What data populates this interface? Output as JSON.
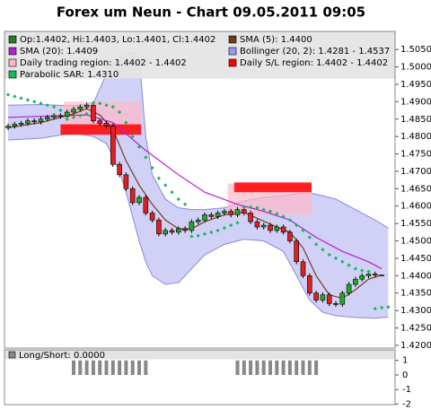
{
  "chart_data": {
    "type": "candlestick",
    "title": "Forex um Neun - Chart 09.05.2011 09:05",
    "ylim": [
      1.4192,
      1.5102
    ],
    "yticks": [
      {
        "value": 1.42,
        "label": "1.4200"
      },
      {
        "value": 1.425,
        "label": "1.4250"
      },
      {
        "value": 1.43,
        "label": "1.4300"
      },
      {
        "value": 1.435,
        "label": "1.4350"
      },
      {
        "value": 1.44,
        "label": "1.4400"
      },
      {
        "value": 1.445,
        "label": "1.4450"
      },
      {
        "value": 1.45,
        "label": "1.4500"
      },
      {
        "value": 1.455,
        "label": "1.4550"
      },
      {
        "value": 1.46,
        "label": "1.4600"
      },
      {
        "value": 1.465,
        "label": "1.4650"
      },
      {
        "value": 1.47,
        "label": "1.4700"
      },
      {
        "value": 1.475,
        "label": "1.4750"
      },
      {
        "value": 1.48,
        "label": "1.4800"
      },
      {
        "value": 1.485,
        "label": "1.4850"
      },
      {
        "value": 1.49,
        "label": "1.4900"
      },
      {
        "value": 1.495,
        "label": "1.4950"
      },
      {
        "value": 1.5,
        "label": "1.5000"
      },
      {
        "value": 1.505,
        "label": "1.5050"
      }
    ],
    "candles": {
      "name": "Op:1.4402, Hi:1.4403, Lo:1.4401, Cl:1.4402",
      "color": "#2a7a2a",
      "up_color": "#22aa22",
      "down_color": "#dd2020",
      "open": [
        1.4825,
        1.483,
        1.4835,
        1.4838,
        1.4845,
        1.4842,
        1.485,
        1.4855,
        1.486,
        1.4858,
        1.487,
        1.4878,
        1.4885,
        1.489,
        1.4845,
        1.4838,
        1.483,
        1.472,
        1.469,
        1.465,
        1.461,
        1.4625,
        1.458,
        1.456,
        1.452,
        1.453,
        1.4525,
        1.4535,
        1.453,
        1.4555,
        1.456,
        1.4575,
        1.457,
        1.458,
        1.4585,
        1.4575,
        1.459,
        1.458,
        1.4555,
        1.454,
        1.4545,
        1.453,
        1.454,
        1.4525,
        1.45,
        1.444,
        1.44,
        1.435,
        1.433,
        1.4345,
        1.432,
        1.4318,
        1.435,
        1.4375,
        1.439,
        1.44,
        1.4405,
        1.4402
      ],
      "high": [
        1.4837,
        1.4842,
        1.4845,
        1.4852,
        1.4852,
        1.4857,
        1.4862,
        1.4867,
        1.4867,
        1.4877,
        1.4885,
        1.4892,
        1.4897,
        1.4897,
        1.4852,
        1.4845,
        1.4837,
        1.4727,
        1.4697,
        1.4657,
        1.4632,
        1.4632,
        1.4587,
        1.4567,
        1.4537,
        1.4537,
        1.4542,
        1.4542,
        1.4562,
        1.4567,
        1.4582,
        1.4582,
        1.4587,
        1.4592,
        1.4592,
        1.4597,
        1.4597,
        1.4587,
        1.4562,
        1.4552,
        1.4552,
        1.4547,
        1.4547,
        1.4532,
        1.4507,
        1.4447,
        1.4407,
        1.4357,
        1.4352,
        1.4352,
        1.4327,
        1.4357,
        1.4382,
        1.4397,
        1.4407,
        1.4412,
        1.4412,
        1.4403
      ],
      "low": [
        1.4818,
        1.4823,
        1.4828,
        1.4831,
        1.4835,
        1.4835,
        1.4843,
        1.4848,
        1.4851,
        1.4851,
        1.4863,
        1.4871,
        1.4878,
        1.4838,
        1.4831,
        1.4823,
        1.4713,
        1.4683,
        1.4643,
        1.4603,
        1.4603,
        1.4573,
        1.4553,
        1.4513,
        1.4513,
        1.4518,
        1.4518,
        1.4523,
        1.4523,
        1.4548,
        1.4553,
        1.4563,
        1.4563,
        1.4573,
        1.4568,
        1.4568,
        1.4573,
        1.4548,
        1.4533,
        1.4533,
        1.4523,
        1.4523,
        1.4518,
        1.4493,
        1.4433,
        1.4393,
        1.4343,
        1.4323,
        1.4323,
        1.4313,
        1.4311,
        1.4311,
        1.4343,
        1.4368,
        1.4383,
        1.4393,
        1.4395,
        1.4401
      ],
      "close": [
        1.483,
        1.4835,
        1.4838,
        1.4845,
        1.4842,
        1.485,
        1.4855,
        1.486,
        1.4858,
        1.487,
        1.4878,
        1.4885,
        1.489,
        1.4845,
        1.4838,
        1.483,
        1.472,
        1.469,
        1.465,
        1.461,
        1.4625,
        1.458,
        1.456,
        1.452,
        1.453,
        1.4525,
        1.4535,
        1.453,
        1.4555,
        1.456,
        1.4575,
        1.457,
        1.458,
        1.4585,
        1.4575,
        1.459,
        1.458,
        1.4555,
        1.454,
        1.4545,
        1.453,
        1.454,
        1.4525,
        1.45,
        1.444,
        1.44,
        1.435,
        1.433,
        1.4345,
        1.432,
        1.4318,
        1.435,
        1.4375,
        1.439,
        1.44,
        1.4405,
        1.4402,
        1.4402
      ]
    },
    "band": {
      "name": "Bollinger (20, 2): 1.4281 - 1.4537",
      "color": "#9999ee",
      "x": [
        0,
        5,
        10,
        13,
        15,
        17,
        18,
        19,
        20,
        21,
        22,
        24,
        26,
        28,
        30,
        33,
        36,
        39,
        42,
        44,
        46,
        48,
        50,
        53,
        56,
        58
      ],
      "upper": [
        1.489,
        1.4892,
        1.4888,
        1.4895,
        1.498,
        1.503,
        1.504,
        1.504,
        1.503,
        1.48,
        1.469,
        1.462,
        1.4595,
        1.459,
        1.459,
        1.4595,
        1.4615,
        1.4625,
        1.463,
        1.4635,
        1.4638,
        1.463,
        1.462,
        1.459,
        1.456,
        1.4537
      ],
      "lower": [
        1.479,
        1.4795,
        1.481,
        1.48,
        1.478,
        1.47,
        1.464,
        1.457,
        1.45,
        1.444,
        1.44,
        1.4375,
        1.438,
        1.442,
        1.446,
        1.449,
        1.4505,
        1.45,
        1.447,
        1.44,
        1.433,
        1.4295,
        1.4285,
        1.428,
        1.4278,
        1.4281
      ]
    },
    "regions": [
      {
        "name": "Daily trading region: 1.4402 - 1.4402",
        "color": "#ffb8c8",
        "items": [
          {
            "start": 8.5,
            "end": 20.3,
            "low": 1.482,
            "high": 1.49
          },
          {
            "start": 33.5,
            "end": 46.3,
            "low": 1.4575,
            "high": 1.4665
          }
        ]
      },
      {
        "name": "Daily S/L region: 1.4402 - 1.4402",
        "color": "#ff0000",
        "items": [
          {
            "start": 8,
            "end": 20.3,
            "low": 1.4805,
            "high": 1.4835
          },
          {
            "start": 34.5,
            "end": 46.3,
            "low": 1.464,
            "high": 1.4668
          }
        ]
      }
    ],
    "lines": [
      {
        "name": "SMA (5): 1.4400",
        "color": "#6b3f1c",
        "x": [
          0,
          5,
          10,
          12,
          14,
          16,
          18,
          20,
          22,
          24,
          26,
          28,
          30,
          33,
          36,
          38,
          41,
          43,
          45,
          47,
          49,
          51,
          53,
          55,
          57
        ],
        "values": [
          1.4825,
          1.484,
          1.4865,
          1.488,
          1.4862,
          1.482,
          1.473,
          1.466,
          1.4605,
          1.456,
          1.4535,
          1.4535,
          1.4555,
          1.4575,
          1.4582,
          1.4565,
          1.454,
          1.4525,
          1.448,
          1.44,
          1.4345,
          1.4335,
          1.436,
          1.439,
          1.4402
        ]
      },
      {
        "name": "SMA (20): 1.4409",
        "color": "#b020d0",
        "x": [
          0,
          12,
          16,
          21,
          26,
          30,
          35,
          39,
          43,
          47,
          51,
          55,
          57
        ],
        "values": [
          1.4855,
          1.4862,
          1.484,
          1.476,
          1.469,
          1.464,
          1.4605,
          1.4585,
          1.456,
          1.451,
          1.447,
          1.444,
          1.442
        ]
      }
    ],
    "sar": {
      "name": "Parabolic SAR: 1.4310",
      "color": "#11bb55",
      "x": [
        0,
        1,
        2,
        3,
        4,
        5,
        6,
        7,
        8,
        9,
        10,
        11,
        12,
        13,
        14,
        15,
        16,
        17,
        18,
        19,
        20,
        21,
        22,
        23,
        24,
        25,
        26,
        27,
        28,
        29,
        30,
        31,
        32,
        33,
        34,
        35,
        36,
        37,
        38,
        39,
        40,
        41,
        42,
        43,
        44,
        45,
        46,
        47,
        48,
        49,
        50,
        51,
        52,
        53,
        54,
        55,
        56,
        57,
        58
      ],
      "values": [
        1.492,
        1.4915,
        1.491,
        1.4905,
        1.49,
        1.4895,
        1.489,
        1.4885,
        1.4875,
        1.485,
        1.4855,
        1.486,
        1.4865,
        1.4897,
        1.4895,
        1.489,
        1.4885,
        1.487,
        1.484,
        1.48,
        1.477,
        1.474,
        1.471,
        1.468,
        1.466,
        1.464,
        1.462,
        1.4605,
        1.4513,
        1.4515,
        1.452,
        1.4525,
        1.453,
        1.4537,
        1.4545,
        1.4552,
        1.4597,
        1.4597,
        1.4595,
        1.459,
        1.4585,
        1.4578,
        1.457,
        1.456,
        1.4545,
        1.453,
        1.451,
        1.449,
        1.4475,
        1.446,
        1.445,
        1.444,
        1.443,
        1.442,
        1.4415,
        1.4412,
        1.4305,
        1.4308,
        1.431
      ]
    },
    "indicator": {
      "type": "bar",
      "name": "Long/Short: 0.0000",
      "color": "#888888",
      "ylim": [
        -2.1,
        1.6
      ],
      "yticks": [
        1,
        0,
        -1,
        -2
      ],
      "values": [
        0,
        0,
        0,
        0,
        0,
        0,
        0,
        0,
        0,
        0,
        1,
        1,
        1,
        1,
        1,
        1,
        1,
        1,
        1,
        1,
        1,
        1,
        0,
        0,
        0,
        0,
        0,
        0,
        0,
        0,
        0,
        0,
        0,
        0,
        0,
        1,
        1,
        1,
        1,
        1,
        1,
        1,
        1,
        1,
        1,
        1,
        1,
        1,
        0,
        0,
        0,
        0,
        0,
        0,
        0,
        0,
        0,
        0
      ]
    }
  }
}
